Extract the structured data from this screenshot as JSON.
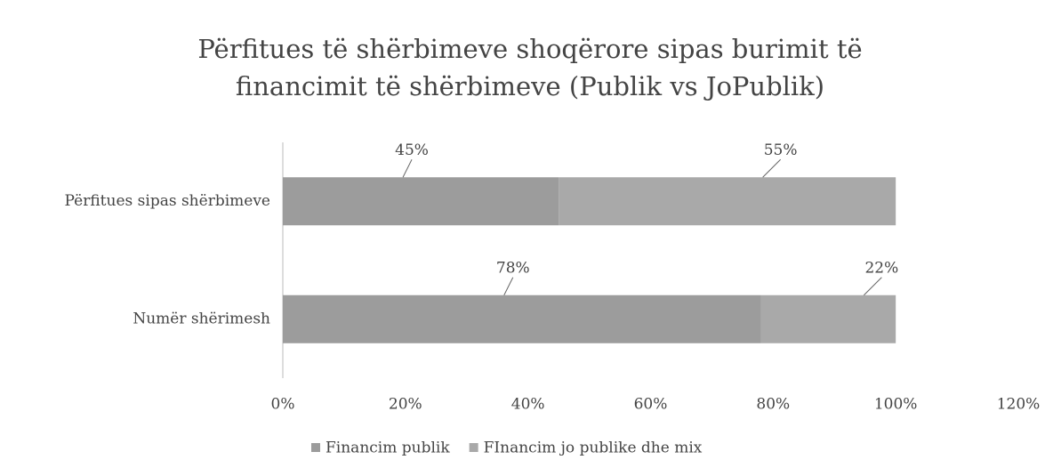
{
  "chart_data": {
    "type": "bar",
    "orientation": "horizontal",
    "stacked": true,
    "title": "Përfitues të shërbimeve shoqërore sipas burimit të financimit të shërbimeve (Publik vs JoPublik)",
    "categories": [
      "Përfitues sipas shërbimeve",
      "Numër shërimesh"
    ],
    "series": [
      {
        "name": "Financim publik",
        "color": "#9c9c9c",
        "values": [
          45,
          78
        ],
        "value_labels": [
          "45%",
          "78%"
        ]
      },
      {
        "name": "FInancim jo publike dhe mix",
        "color": "#a9a9a9",
        "values": [
          55,
          22
        ],
        "value_labels": [
          "55%",
          "22%"
        ]
      }
    ],
    "xlim": [
      0,
      120
    ],
    "xticks": [
      {
        "value": 0,
        "label": "0%"
      },
      {
        "value": 20,
        "label": "20%"
      },
      {
        "value": 40,
        "label": "40%"
      },
      {
        "value": 60,
        "label": "60%"
      },
      {
        "value": 80,
        "label": "80%"
      },
      {
        "value": 100,
        "label": "100%"
      },
      {
        "value": 120,
        "label": "120%"
      }
    ],
    "grid": false,
    "legend": "bottom"
  }
}
